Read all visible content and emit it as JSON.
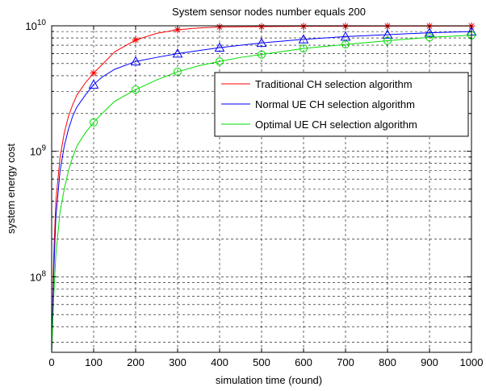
{
  "chart_data": {
    "type": "line",
    "title": "System sensor nodes number equals 200",
    "xlabel": "simulation time (round)",
    "ylabel": "system energy cost",
    "xlim": [
      0,
      1000
    ],
    "ylim": [
      25000000,
      10000000000
    ],
    "yscale": "log",
    "grid": true,
    "grid_style": "dashed",
    "legend_position": "upper-right",
    "xticks": [
      0,
      100,
      200,
      300,
      400,
      500,
      600,
      700,
      800,
      900,
      1000
    ],
    "xtick_labels": [
      "0",
      "100",
      "200",
      "300",
      "400",
      "500",
      "600",
      "700",
      "800",
      "900",
      "1000"
    ],
    "yticks": [
      100000000,
      1000000000,
      10000000000
    ],
    "ytick_labels": [
      {
        "base": "10",
        "exp": "8"
      },
      {
        "base": "10",
        "exp": "9"
      },
      {
        "base": "10",
        "exp": "10"
      }
    ],
    "series": [
      {
        "name": "Traditional CH selection algorithm",
        "color": "#ff0000",
        "marker": "star",
        "x": [
          0,
          5,
          10,
          20,
          30,
          40,
          50,
          60,
          80,
          100,
          120,
          150,
          200,
          250,
          300,
          350,
          400,
          500,
          600,
          700,
          800,
          900,
          1000
        ],
        "y": [
          25000000,
          150000000,
          400000000,
          900000000,
          1400000000,
          1900000000,
          2350000000,
          2800000000,
          3500000000,
          4200000000,
          4900000000,
          6200000000,
          7700000000,
          8700000000,
          9300000000,
          9600000000,
          9800000000,
          9850000000,
          9900000000,
          9920000000,
          9940000000,
          9950000000,
          9960000000
        ],
        "marker_x": [
          100,
          200,
          300,
          400,
          500,
          600,
          700,
          800,
          900,
          1000
        ],
        "marker_y": [
          4200000000,
          7700000000,
          9300000000,
          9800000000,
          9850000000,
          9900000000,
          9920000000,
          9940000000,
          9950000000,
          9960000000
        ]
      },
      {
        "name": "Normal UE CH selection algorithm",
        "color": "#0000ff",
        "marker": "triangle",
        "x": [
          0,
          5,
          10,
          20,
          30,
          40,
          50,
          60,
          80,
          100,
          120,
          150,
          200,
          250,
          300,
          350,
          400,
          450,
          500,
          600,
          700,
          800,
          900,
          1000
        ],
        "y": [
          25000000,
          110000000,
          300000000,
          700000000,
          1100000000,
          1500000000,
          1900000000,
          2250000000,
          2800000000,
          3400000000,
          3900000000,
          4500000000,
          5200000000,
          5600000000,
          6000000000,
          6350000000,
          6700000000,
          7000000000,
          7300000000,
          7800000000,
          8200000000,
          8500000000,
          8800000000,
          9000000000
        ],
        "marker_x": [
          100,
          200,
          300,
          400,
          500,
          600,
          700,
          800,
          900,
          1000
        ],
        "marker_y": [
          3400000000,
          5200000000,
          6000000000,
          6700000000,
          7300000000,
          7800000000,
          8200000000,
          8500000000,
          8800000000,
          9000000000
        ]
      },
      {
        "name": "Optimal UE CH selection algorithm",
        "color": "#00dd00",
        "marker": "circle",
        "x": [
          0,
          5,
          10,
          20,
          30,
          40,
          50,
          60,
          80,
          100,
          120,
          150,
          200,
          250,
          300,
          350,
          400,
          450,
          500,
          600,
          700,
          800,
          900,
          1000
        ],
        "y": [
          25000000,
          70000000,
          150000000,
          330000000,
          500000000,
          700000000,
          900000000,
          1100000000,
          1400000000,
          1700000000,
          2000000000,
          2500000000,
          3100000000,
          3700000000,
          4300000000,
          4800000000,
          5200000000,
          5600000000,
          5900000000,
          6600000000,
          7100000000,
          7600000000,
          8100000000,
          8400000000
        ],
        "marker_x": [
          100,
          200,
          300,
          400,
          500,
          600,
          700,
          800,
          900,
          1000
        ],
        "marker_y": [
          1700000000,
          3100000000,
          4300000000,
          5200000000,
          5900000000,
          6600000000,
          7100000000,
          7600000000,
          8100000000,
          8400000000
        ]
      }
    ]
  }
}
